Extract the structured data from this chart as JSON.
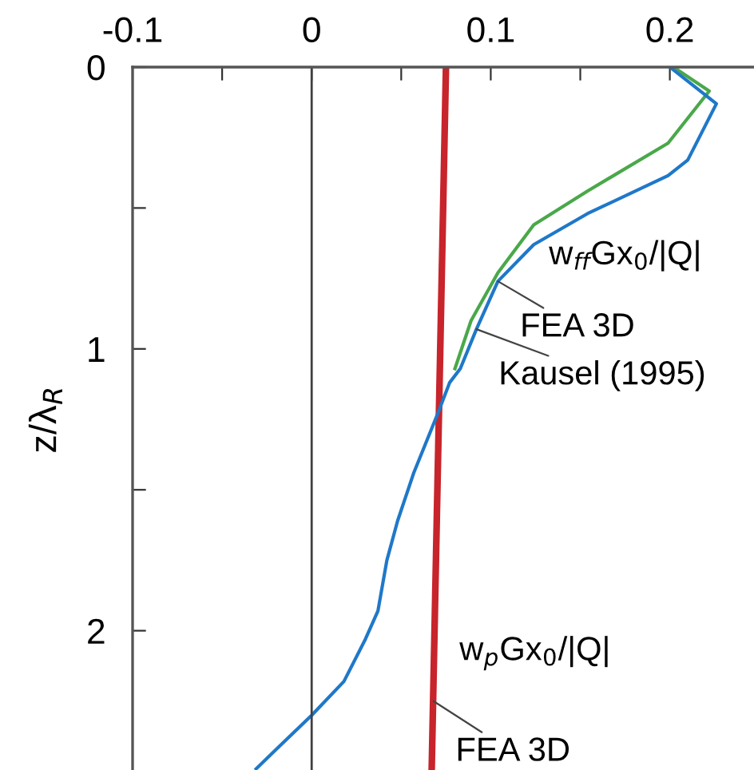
{
  "chart_data": {
    "type": "line",
    "ylabel": "z/λ$_{R}$",
    "xlim": [
      -0.1,
      0.247
    ],
    "xticks": [
      -0.1,
      {
        "value": -0.05,
        "label": null
      },
      0,
      {
        "value": 0.05,
        "label": null
      },
      0.1,
      {
        "value": 0.15,
        "label": null
      },
      0.2
    ],
    "ylim": [
      2.5,
      0
    ],
    "yticks": [
      0,
      {
        "value": 0.5,
        "label": null
      },
      1,
      {
        "value": 1.5,
        "label": null
      },
      2
    ],
    "grid": false,
    "legend": false,
    "series": [
      {
        "color": "#c8242b",
        "x": [
          0.075,
          0.067
        ],
        "values": [
          0,
          2.5
        ]
      },
      {
        "color": "#4aa84a",
        "x": [
          0.202,
          0.222,
          0.199,
          0.154,
          0.124,
          0.104,
          0.089,
          0.08
        ],
        "values": [
          0,
          0.085,
          0.27,
          0.44,
          0.56,
          0.73,
          0.9,
          1.07
        ]
      },
      {
        "color": "#1f78c8",
        "x": [
          0.2,
          0.226,
          0.21,
          0.199,
          0.154,
          0.124,
          0.104,
          0.092,
          0.083,
          0.077,
          0.071,
          0.057,
          0.048,
          0.042,
          0.037,
          0.03,
          0.018,
          0.0,
          -0.018,
          -0.031
        ],
        "values": [
          0,
          0.13,
          0.33,
          0.385,
          0.52,
          0.63,
          0.76,
          0.93,
          1.07,
          1.12,
          1.22,
          1.44,
          1.61,
          1.75,
          1.93,
          2.03,
          2.18,
          2.3,
          2.41,
          2.49
        ]
      }
    ],
    "ref_lines": [
      {
        "axis": "x",
        "value": 0,
        "color": "#404040"
      }
    ],
    "annotations": [
      "w$_{ff}$Gx$_{0}$/|Q|",
      {
        "text": "FEA 3D",
        "x": 0.104,
        "y": 0.76
      },
      {
        "text": "Kausel (1995)",
        "x": 0.092,
        "y": 0.93
      },
      "w$_{p}$Gx$_{0}$/|Q|",
      {
        "text": "FEA 3D",
        "x": 0.068,
        "y": 2.25
      }
    ]
  }
}
